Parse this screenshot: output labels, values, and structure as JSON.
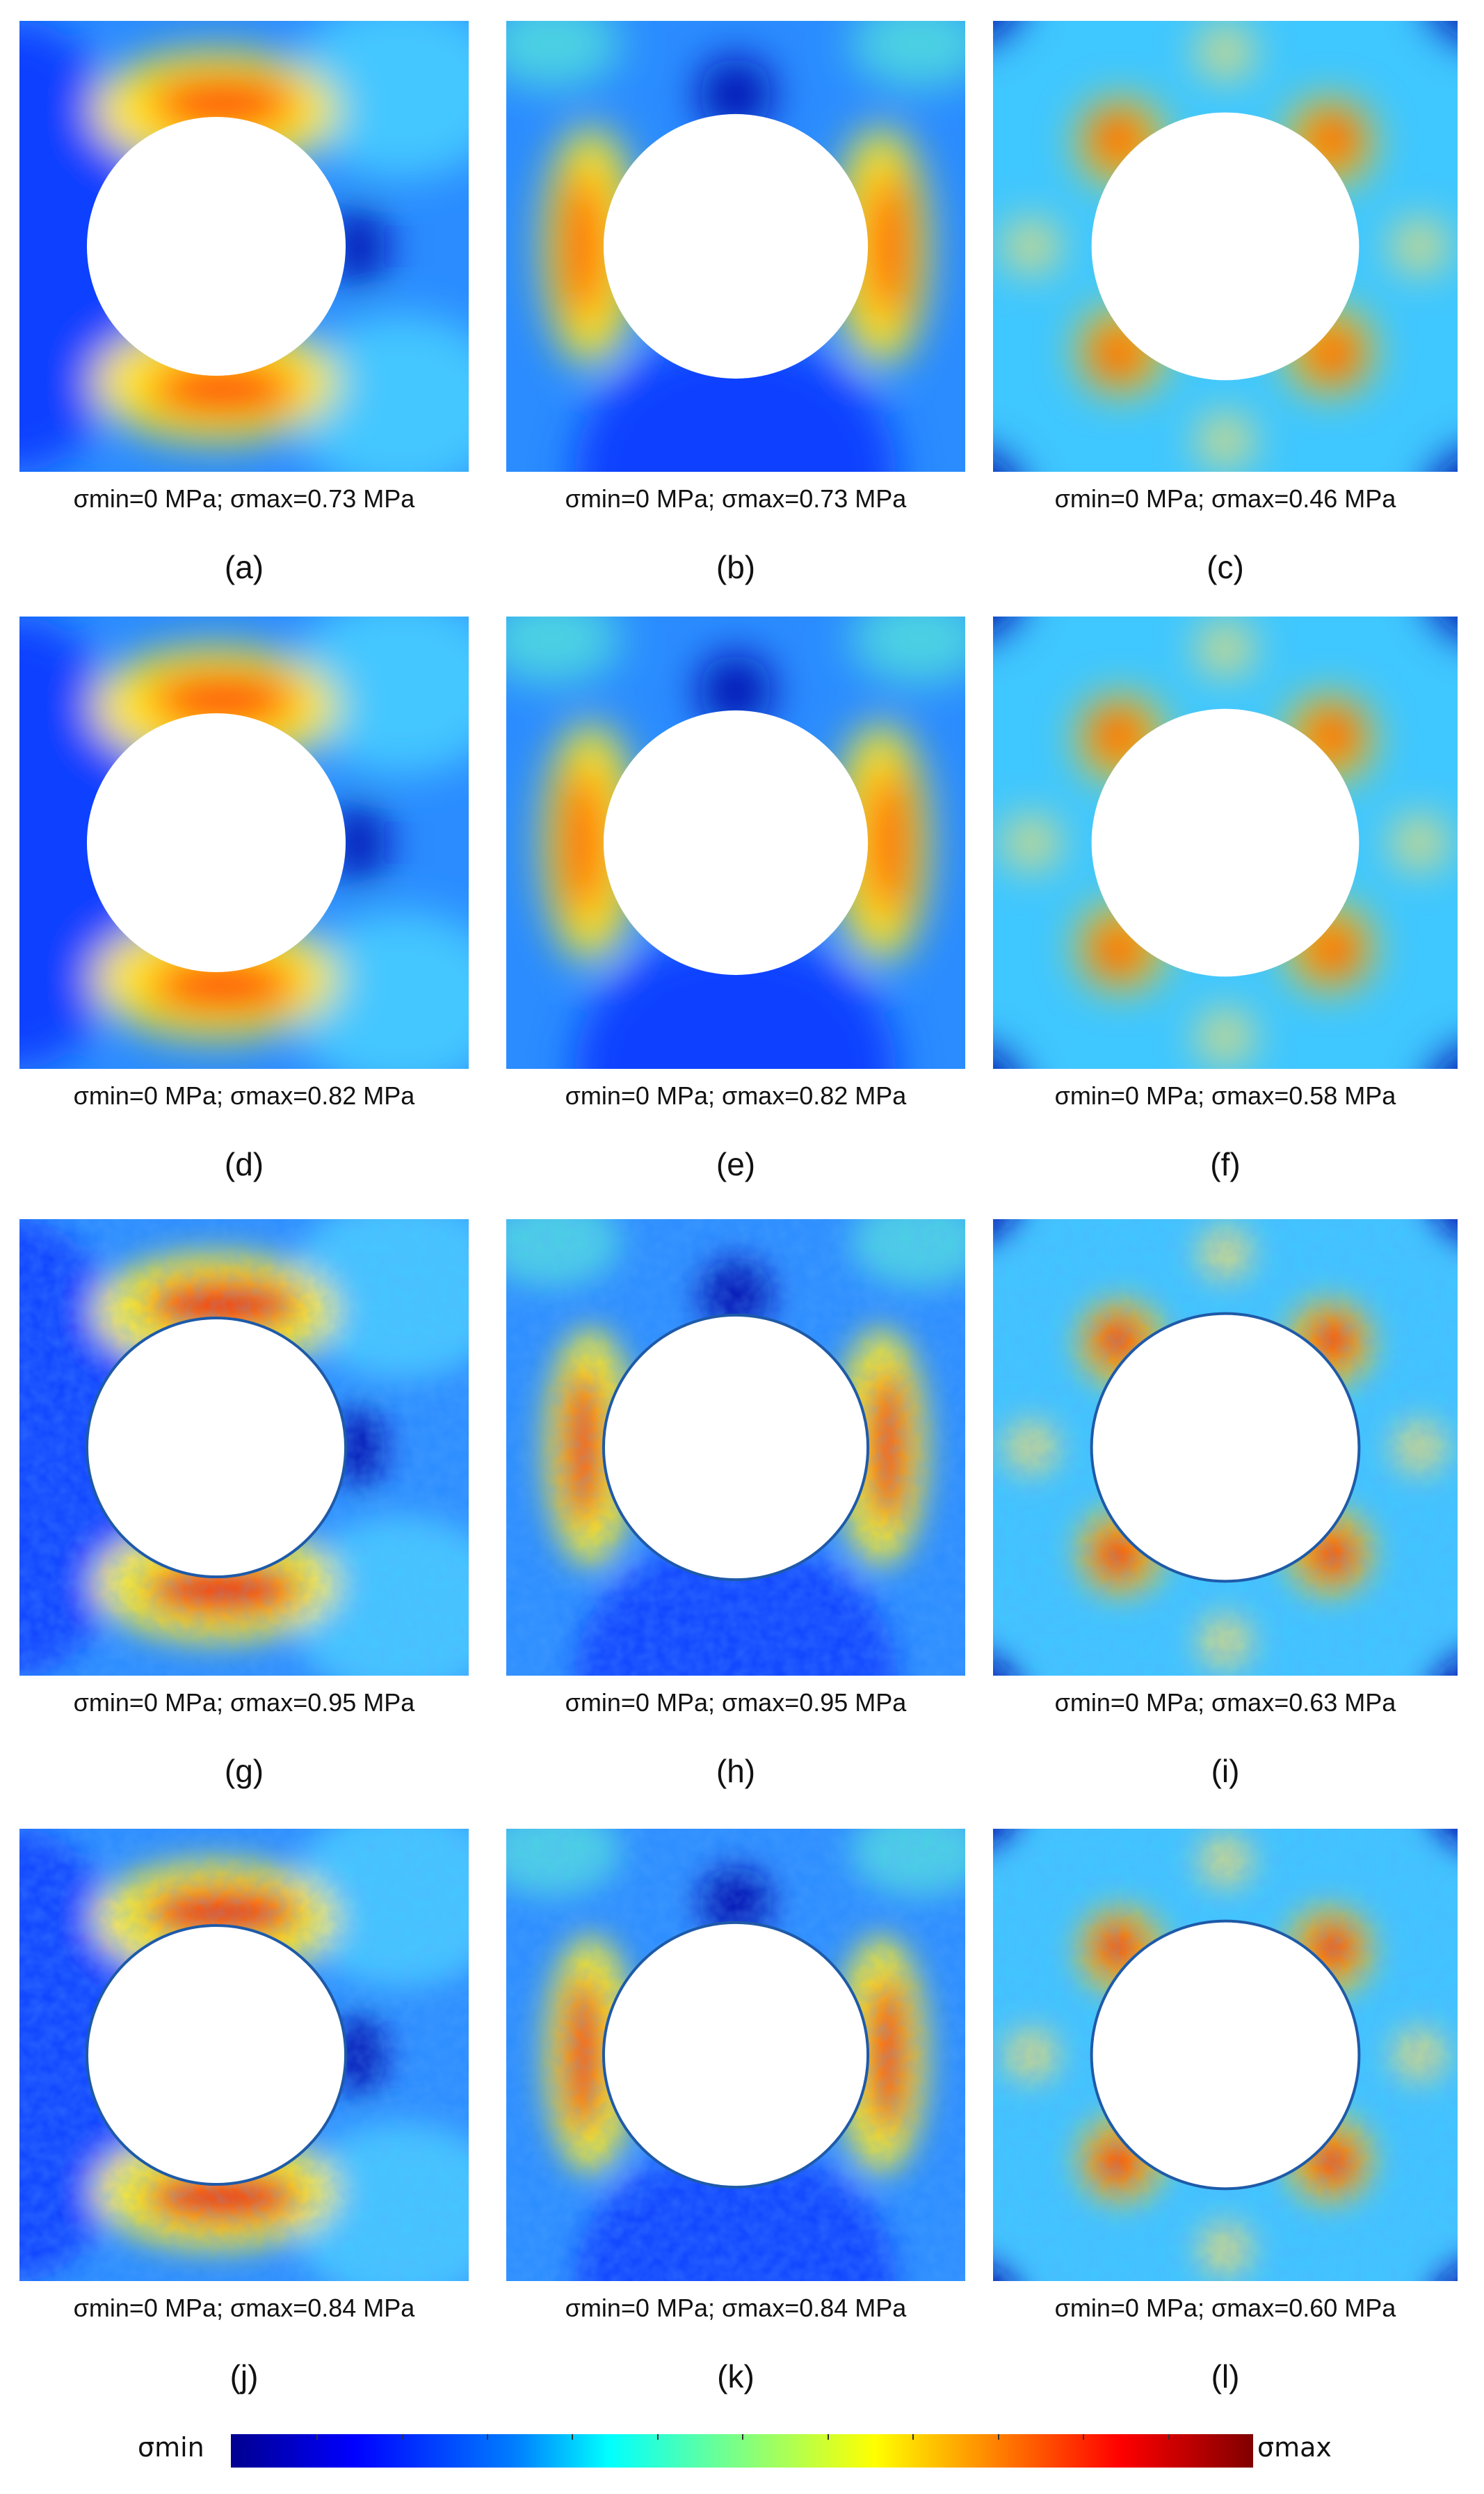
{
  "figure": {
    "panels": [
      {
        "id": "a",
        "label": "(a)",
        "range": "σmin=0 MPa; σmax=0.73 MPa",
        "pattern": "vertical-concentration",
        "texture": "smooth"
      },
      {
        "id": "b",
        "label": "(b)",
        "range": "σmin=0 MPa; σmax=0.73 MPa",
        "pattern": "horizontal-concentration",
        "texture": "smooth"
      },
      {
        "id": "c",
        "label": "(c)",
        "range": "σmin=0 MPa; σmax=0.46 MPa",
        "pattern": "diagonal-concentration",
        "texture": "smooth"
      },
      {
        "id": "d",
        "label": "(d)",
        "range": "σmin=0 MPa; σmax=0.82 MPa",
        "pattern": "vertical-concentration",
        "texture": "smooth"
      },
      {
        "id": "e",
        "label": "(e)",
        "range": "σmin=0 MPa; σmax=0.82 MPa",
        "pattern": "horizontal-concentration",
        "texture": "smooth"
      },
      {
        "id": "f",
        "label": "(f)",
        "range": "σmin=0 MPa; σmax=0.58 MPa",
        "pattern": "diagonal-concentration",
        "texture": "smooth"
      },
      {
        "id": "g",
        "label": "(g)",
        "range": "σmin=0 MPa; σmax=0.95 MPa",
        "pattern": "vertical-concentration",
        "texture": "noisy"
      },
      {
        "id": "h",
        "label": "(h)",
        "range": "σmin=0 MPa; σmax=0.95 MPa",
        "pattern": "horizontal-concentration",
        "texture": "noisy"
      },
      {
        "id": "i",
        "label": "(i)",
        "range": "σmin=0 MPa; σmax=0.63 MPa",
        "pattern": "diagonal-concentration",
        "texture": "noisy"
      },
      {
        "id": "j",
        "label": "(j)",
        "range": "σmin=0 MPa; σmax=0.84 MPa",
        "pattern": "vertical-concentration",
        "texture": "noisy"
      },
      {
        "id": "k",
        "label": "(k)",
        "range": "σmin=0 MPa; σmax=0.84 MPa",
        "pattern": "horizontal-concentration",
        "texture": "noisy"
      },
      {
        "id": "l",
        "label": "(l)",
        "range": "σmin=0 MPa; σmax=0.60 MPa",
        "pattern": "diagonal-concentration",
        "texture": "noisy"
      }
    ],
    "colorbar": {
      "min_label": "σmin",
      "max_label": "σmax",
      "colormap": "jet",
      "colors": [
        "#00008f",
        "#0000ff",
        "#0080ff",
        "#00ffff",
        "#80ff80",
        "#ffff00",
        "#ff8000",
        "#ff0000",
        "#800000"
      ]
    }
  }
}
